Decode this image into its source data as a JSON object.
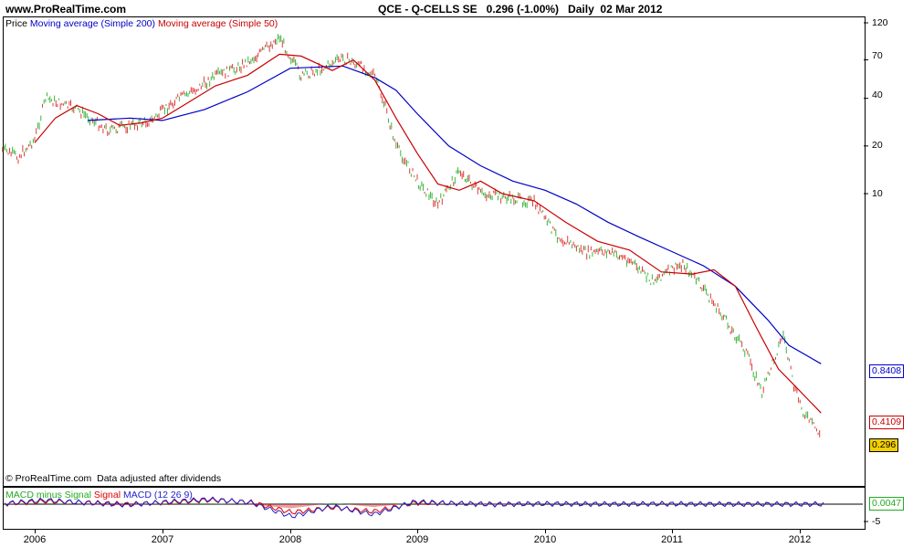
{
  "site": "www.ProRealTime.com",
  "header": "QCE - Q-CELLS SE   0.296 (-1.00%)   Daily  02 Mar 2012",
  "price_legend": [
    {
      "text": "Price",
      "color": "#000000"
    },
    {
      "text": "Moving average (Simple 200)",
      "color": "#0000c8"
    },
    {
      "text": "Moving average (Simple 50)",
      "color": "#c80000"
    }
  ],
  "copyright": "© ProRealTime.com  Data adjusted after dividends",
  "macd_legend": [
    {
      "text": "MACD minus Signal",
      "color": "#22aa22"
    },
    {
      "text": "Signal",
      "color": "#dd0000"
    },
    {
      "text": "MACD (12 26 9)",
      "color": "#2222cc"
    }
  ],
  "value_boxes": {
    "ma200": {
      "text": "0.8408",
      "color": "#0000c8"
    },
    "ma50": {
      "text": "0.4109",
      "color": "#c80000"
    },
    "price": {
      "text": "0.296",
      "color": "#000000",
      "bg": "#f5d000"
    },
    "macd": {
      "text": "0.0047",
      "color": "#22aa22"
    }
  },
  "chart_data": [
    {
      "type": "line",
      "yscale": "log",
      "y_ticks": [
        120,
        70,
        40,
        20,
        10
      ],
      "x_ticks": [
        "2006",
        "2007",
        "2008",
        "2009",
        "2010",
        "2011",
        "2012"
      ],
      "series": [
        {
          "name": "Price",
          "x": [
            "2005-10-01",
            "2005-11-15",
            "2006-01-01",
            "2006-02-01",
            "2006-05-01",
            "2006-08-01",
            "2006-10-01",
            "2006-12-01",
            "2007-02-01",
            "2007-04-01",
            "2007-06-01",
            "2007-08-01",
            "2007-10-01",
            "2007-12-01",
            "2008-02-01",
            "2008-04-01",
            "2008-06-01",
            "2008-08-01",
            "2008-09-01",
            "2008-10-01",
            "2008-11-01",
            "2009-01-01",
            "2009-03-01",
            "2009-05-01",
            "2009-07-01",
            "2009-09-01",
            "2009-12-01",
            "2010-02-01",
            "2010-05-01",
            "2010-07-01",
            "2010-09-01",
            "2010-11-01",
            "2011-02-01",
            "2011-04-01",
            "2011-06-01",
            "2011-08-01",
            "2011-09-15",
            "2011-10-15",
            "2011-11-15",
            "2011-12-15",
            "2012-01-15",
            "2012-03-02"
          ],
          "y": [
            19,
            17,
            22,
            40,
            34,
            25,
            27,
            29,
            38,
            45,
            55,
            62,
            75,
            98,
            55,
            62,
            72,
            62,
            55,
            35,
            20,
            12,
            8.5,
            14,
            10,
            9.5,
            8.8,
            5.5,
            4.2,
            4.3,
            3.8,
            2.8,
            3.6,
            2.5,
            1.6,
            1.0,
            0.55,
            0.85,
            1.3,
            0.6,
            0.4,
            0.296
          ]
        },
        {
          "name": "Moving average (Simple 200)",
          "x": [
            "2006-06-01",
            "2006-10-01",
            "2007-01-01",
            "2007-05-01",
            "2007-09-01",
            "2008-01-01",
            "2008-06-01",
            "2008-09-01",
            "2008-11-01",
            "2009-01-01",
            "2009-04-01",
            "2009-07-01",
            "2009-10-01",
            "2010-01-01",
            "2010-04-01",
            "2010-07-01",
            "2010-10-01",
            "2011-01-01",
            "2011-04-01",
            "2011-07-01",
            "2011-10-01",
            "2011-12-01",
            "2012-03-02"
          ],
          "y": [
            29,
            30,
            29,
            34,
            44,
            62,
            64,
            54,
            45,
            32,
            20,
            15,
            12,
            10.5,
            8.6,
            6.6,
            5.3,
            4.3,
            3.5,
            2.6,
            1.6,
            1.1,
            0.8408
          ]
        },
        {
          "name": "Moving average (Simple 50)",
          "x": [
            "2006-01-01",
            "2006-03-01",
            "2006-05-01",
            "2006-07-01",
            "2006-09-01",
            "2006-11-01",
            "2007-01-01",
            "2007-03-01",
            "2007-06-01",
            "2007-09-01",
            "2007-12-01",
            "2008-02-01",
            "2008-05-01",
            "2008-07-01",
            "2008-09-01",
            "2008-11-01",
            "2009-01-01",
            "2009-03-01",
            "2009-05-01",
            "2009-07-01",
            "2009-09-01",
            "2009-12-01",
            "2010-03-01",
            "2010-06-01",
            "2010-09-01",
            "2010-12-01",
            "2011-03-01",
            "2011-05-01",
            "2011-07-01",
            "2011-09-01",
            "2011-11-01",
            "2011-12-15",
            "2012-03-02"
          ],
          "y": [
            21,
            30,
            36,
            32,
            27,
            28,
            30,
            36,
            48,
            56,
            76,
            74,
            60,
            70,
            52,
            30,
            18,
            11.5,
            10.5,
            12,
            10,
            9,
            6.6,
            5,
            4.4,
            3.2,
            3.1,
            3.3,
            2.6,
            1.4,
            0.78,
            0.62,
            0.4109
          ]
        }
      ]
    },
    {
      "type": "line",
      "y_ticks": [
        -5
      ],
      "series": [
        {
          "name": "MACD (12 26 9)",
          "x": [
            0,
            0.05,
            0.1,
            0.15,
            0.2,
            0.25,
            0.3,
            0.35,
            0.4,
            0.45,
            0.5,
            0.55,
            0.6,
            0.65,
            0.7,
            0.75,
            0.8,
            0.85,
            0.9,
            0.95,
            1.0
          ],
          "y": [
            0.2,
            1.0,
            0.3,
            -0.2,
            0.6,
            1.2,
            0.4,
            -3.0,
            -0.5,
            -2.5,
            0.6,
            0.2,
            -0.1,
            0.1,
            0.05,
            0.02,
            0.1,
            0.02,
            -0.02,
            0.01,
            0.0047
          ]
        },
        {
          "name": "Signal",
          "x": [
            0,
            0.05,
            0.1,
            0.15,
            0.2,
            0.25,
            0.3,
            0.35,
            0.4,
            0.45,
            0.5,
            0.55,
            0.6,
            0.65,
            0.7,
            0.75,
            0.8,
            0.85,
            0.9,
            0.95,
            1.0
          ],
          "y": [
            0.1,
            0.7,
            0.4,
            0.0,
            0.4,
            1.0,
            0.5,
            -2.0,
            -0.8,
            -1.8,
            0.3,
            0.2,
            0.0,
            0.08,
            0.04,
            0.02,
            0.07,
            0.03,
            -0.01,
            0.01,
            0.005
          ]
        }
      ]
    }
  ]
}
